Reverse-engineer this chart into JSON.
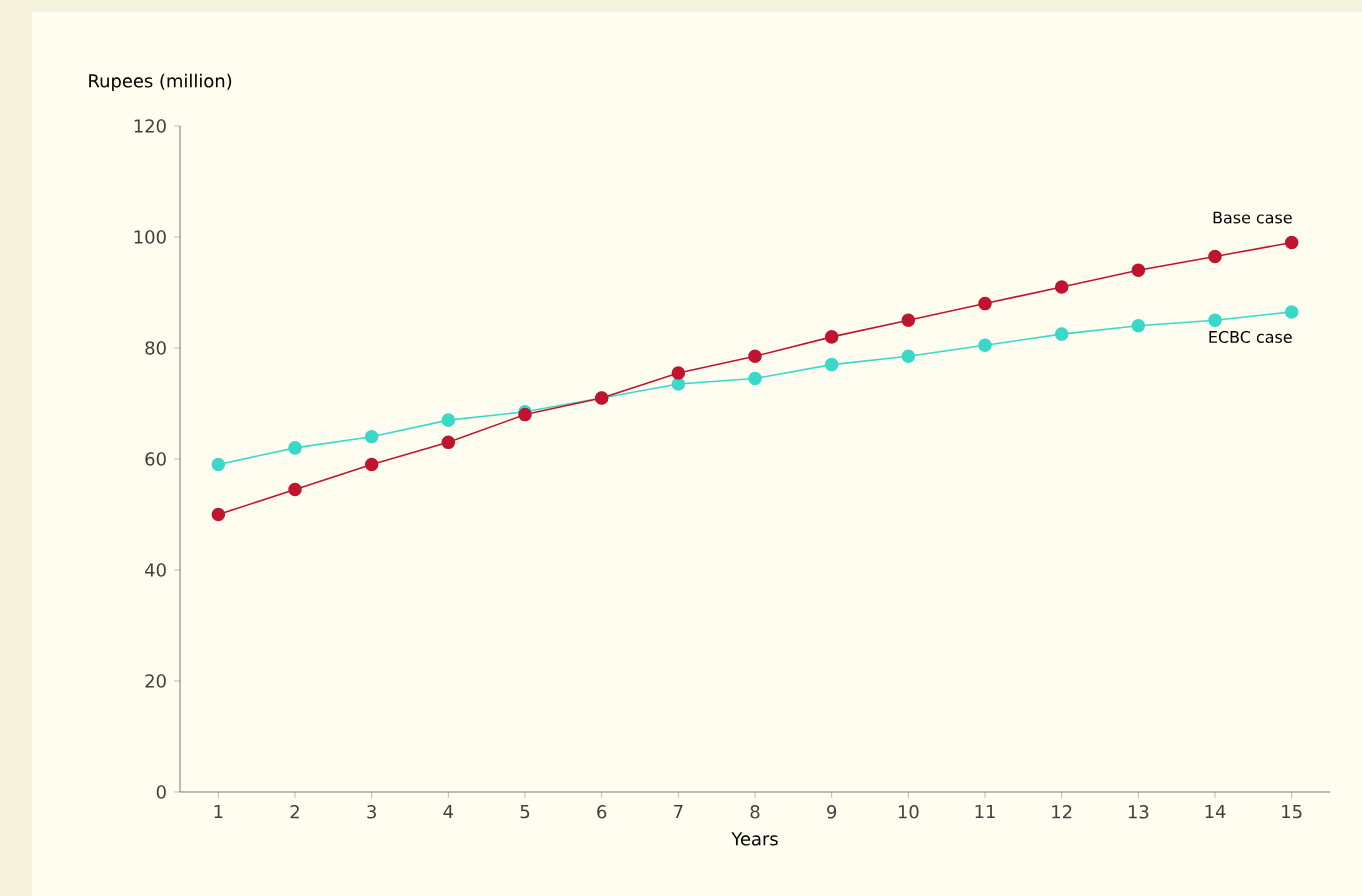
{
  "chart_data": {
    "type": "line",
    "ylabel": "Rupees (million)",
    "xlabel": "Years",
    "x": [
      1,
      2,
      3,
      4,
      5,
      6,
      7,
      8,
      9,
      10,
      11,
      12,
      13,
      14,
      15
    ],
    "series": [
      {
        "name": "Base case",
        "color": "#c0142e",
        "values": [
          50,
          54.5,
          59,
          63,
          68,
          71,
          75.5,
          78.5,
          82,
          85,
          88,
          91,
          94,
          96.5,
          99
        ]
      },
      {
        "name": "ECBC case",
        "color": "#3ad8c8",
        "values": [
          59,
          62,
          64,
          67,
          68.5,
          71,
          73.5,
          74.5,
          77,
          78.5,
          80.5,
          82.5,
          84,
          85,
          86.5
        ]
      }
    ],
    "xlim": [
      0.5,
      15.5
    ],
    "xticks": [
      1,
      2,
      3,
      4,
      5,
      6,
      7,
      8,
      9,
      10,
      11,
      12,
      13,
      14,
      15
    ],
    "ylim": [
      0,
      120
    ],
    "yticks": [
      0,
      20,
      40,
      60,
      80,
      100,
      120
    ],
    "grid": false,
    "legend": false,
    "marker": "circle",
    "line_style": "solid"
  }
}
